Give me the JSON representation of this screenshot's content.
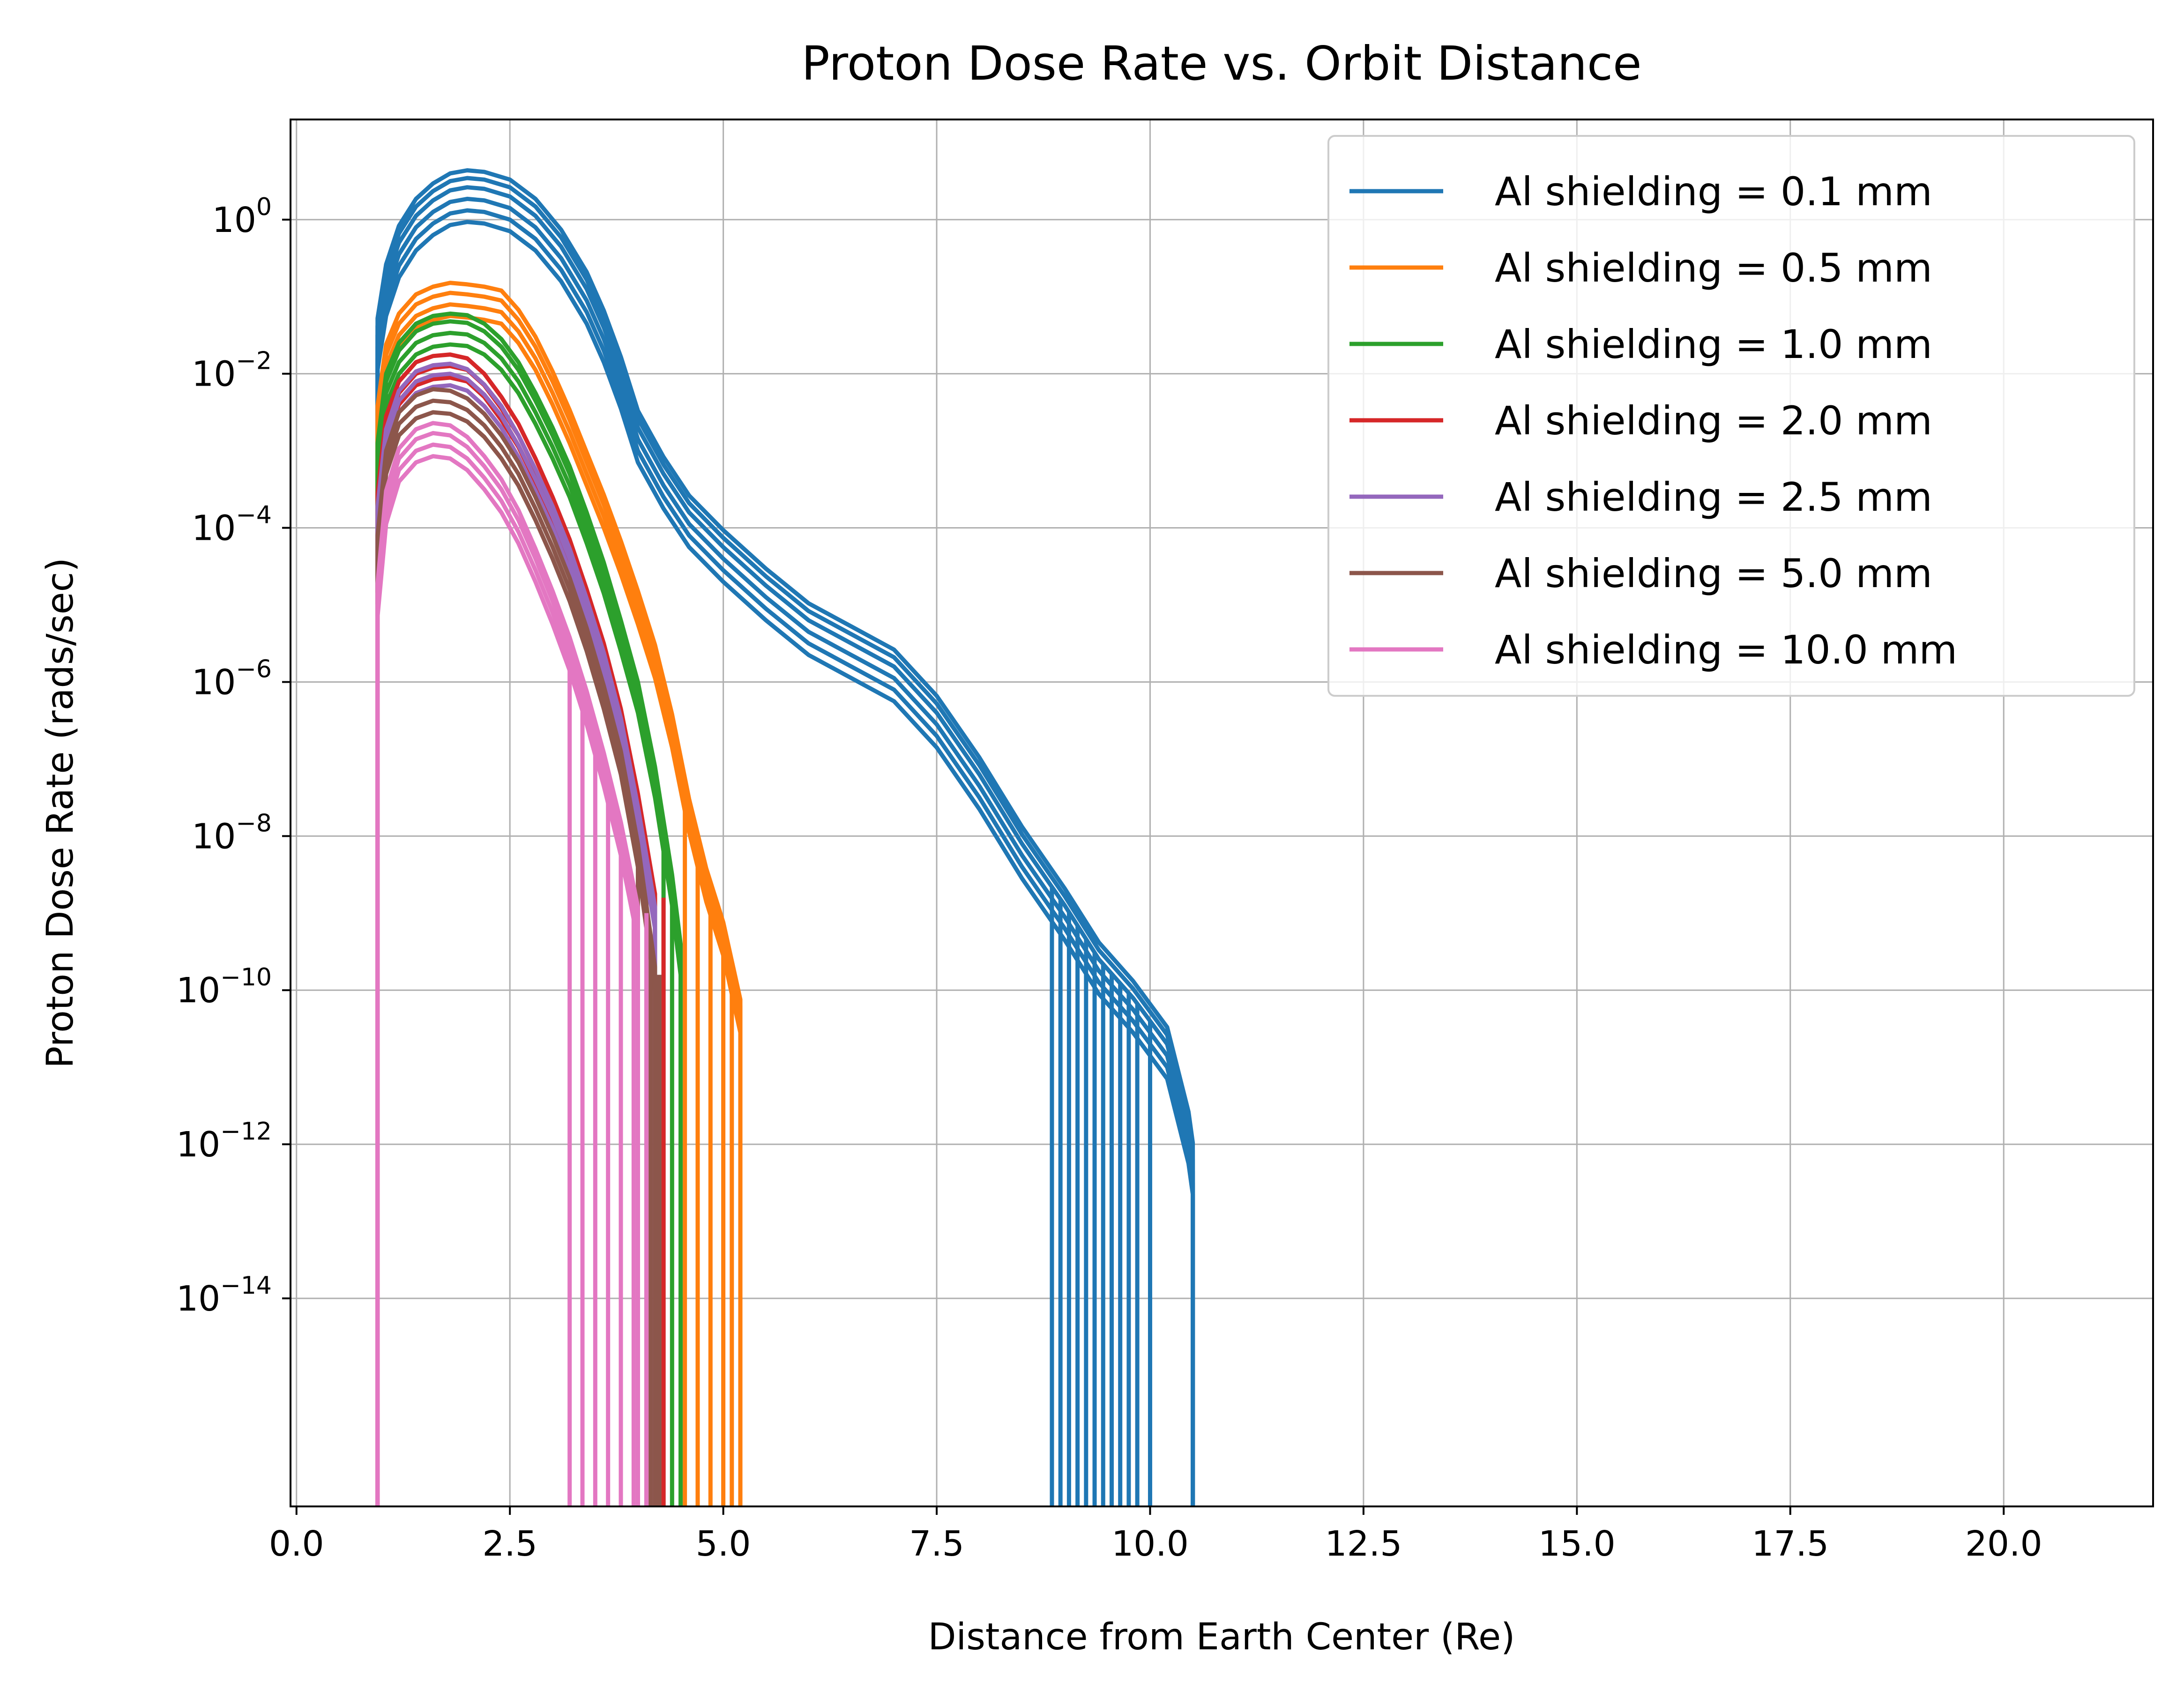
{
  "chart_data": {
    "type": "line",
    "title": "Proton Dose Rate vs. Orbit Distance",
    "xlabel": "Distance from Earth Center (Re)",
    "ylabel": "Proton Dose Rate (rads/sec)",
    "xlim": [
      -0.07,
      21.75
    ],
    "ylim_exponent": [
      -16.7,
      1.3
    ],
    "yscale": "log",
    "grid": true,
    "legend_position": "top-right",
    "x_ticks": [
      {
        "value": 0.0,
        "label": "0.0"
      },
      {
        "value": 2.5,
        "label": "2.5"
      },
      {
        "value": 5.0,
        "label": "5.0"
      },
      {
        "value": 7.5,
        "label": "7.5"
      },
      {
        "value": 10.0,
        "label": "10.0"
      },
      {
        "value": 12.5,
        "label": "12.5"
      },
      {
        "value": 15.0,
        "label": "15.0"
      },
      {
        "value": 17.5,
        "label": "17.5"
      },
      {
        "value": 20.0,
        "label": "20.0"
      }
    ],
    "y_ticks": [
      {
        "exponent": 0,
        "base": "10",
        "sup": "0"
      },
      {
        "exponent": -2,
        "base": "10",
        "sup": "−2"
      },
      {
        "exponent": -4,
        "base": "10",
        "sup": "−4"
      },
      {
        "exponent": -6,
        "base": "10",
        "sup": "−6"
      },
      {
        "exponent": -8,
        "base": "10",
        "sup": "−8"
      },
      {
        "exponent": -10,
        "base": "10",
        "sup": "−10"
      },
      {
        "exponent": -12,
        "base": "10",
        "sup": "−12"
      },
      {
        "exponent": -14,
        "base": "10",
        "sup": "−14"
      }
    ],
    "series": [
      {
        "name": "Al shielding = 0.1 mm",
        "color": "#1f77b4",
        "x": [
          0.95,
          1.05,
          1.2,
          1.4,
          1.6,
          1.8,
          2.0,
          2.2,
          2.5,
          2.8,
          3.1,
          3.4,
          3.6,
          3.8,
          4.0,
          4.3,
          4.6,
          5.0,
          5.5,
          6.0,
          6.5,
          7.0,
          7.5,
          8.0,
          8.5,
          9.0,
          9.4,
          9.8,
          10.2,
          10.45,
          10.5
        ],
        "log10_y": [
          -1.5,
          -0.8,
          -0.3,
          0.05,
          0.25,
          0.38,
          0.42,
          0.4,
          0.3,
          0.05,
          -0.35,
          -0.9,
          -1.4,
          -2.0,
          -2.7,
          -3.3,
          -3.8,
          -4.25,
          -4.75,
          -5.2,
          -5.5,
          -5.8,
          -6.4,
          -7.2,
          -8.1,
          -8.9,
          -9.6,
          -10.1,
          -10.7,
          -11.8,
          -12.2
        ],
        "band_offsets": [
          -0.45,
          -0.3,
          -0.15,
          0.0,
          0.12,
          0.22
        ],
        "cutoff_x": [
          8.85,
          8.95,
          9.05,
          9.15,
          9.25,
          9.35,
          9.45,
          9.55,
          9.65,
          9.75,
          9.85,
          10.0
        ]
      },
      {
        "name": "Al shielding = 0.5 mm",
        "color": "#ff7f0e",
        "x": [
          0.95,
          1.05,
          1.2,
          1.4,
          1.6,
          1.8,
          2.0,
          2.2,
          2.4,
          2.6,
          2.8,
          3.0,
          3.2,
          3.4,
          3.6,
          3.8,
          4.0,
          4.2,
          4.4,
          4.6,
          4.8,
          5.0,
          5.2
        ],
        "log10_y": [
          -2.5,
          -1.7,
          -1.3,
          -1.05,
          -0.95,
          -0.9,
          -0.92,
          -0.95,
          -1.0,
          -1.25,
          -1.6,
          -2.05,
          -2.55,
          -3.1,
          -3.65,
          -4.25,
          -4.9,
          -5.6,
          -6.5,
          -7.6,
          -8.5,
          -9.2,
          -10.2
        ],
        "band_offsets": [
          -0.35,
          -0.2,
          -0.05,
          0.08
        ],
        "cutoff_x": [
          4.55,
          4.7,
          4.85,
          5.0,
          5.1,
          5.2
        ]
      },
      {
        "name": "Al shielding = 1.0 mm",
        "color": "#2ca02c",
        "x": [
          0.95,
          1.05,
          1.2,
          1.4,
          1.6,
          1.8,
          2.0,
          2.2,
          2.4,
          2.6,
          2.8,
          3.0,
          3.2,
          3.4,
          3.6,
          3.8,
          4.0,
          4.2,
          4.4,
          4.5
        ],
        "log10_y": [
          -3.0,
          -2.1,
          -1.7,
          -1.45,
          -1.35,
          -1.32,
          -1.34,
          -1.45,
          -1.65,
          -1.95,
          -2.35,
          -2.8,
          -3.3,
          -3.9,
          -4.55,
          -5.3,
          -6.1,
          -7.2,
          -8.6,
          -9.5
        ],
        "band_offsets": [
          -0.3,
          -0.15,
          0.0,
          0.1
        ],
        "cutoff_x": [
          4.3,
          4.4,
          4.5
        ]
      },
      {
        "name": "Al shielding = 2.0 mm",
        "color": "#d62728",
        "x": [
          0.95,
          1.05,
          1.2,
          1.4,
          1.6,
          1.8,
          2.0,
          2.2,
          2.4,
          2.6,
          2.8,
          3.0,
          3.2,
          3.4,
          3.6,
          3.8,
          4.0,
          4.2
        ],
        "log10_y": [
          -3.6,
          -2.6,
          -2.15,
          -1.9,
          -1.82,
          -1.8,
          -1.85,
          -2.05,
          -2.35,
          -2.7,
          -3.15,
          -3.65,
          -4.2,
          -4.85,
          -5.55,
          -6.4,
          -7.5,
          -8.8
        ],
        "band_offsets": [
          -0.25,
          -0.1,
          0.05
        ],
        "cutoff_x": [
          4.1,
          4.2,
          4.3
        ]
      },
      {
        "name": "Al shielding = 2.5 mm",
        "color": "#9467bd",
        "x": [
          0.95,
          1.05,
          1.2,
          1.4,
          1.6,
          1.8,
          2.0,
          2.2,
          2.4,
          2.6,
          2.8,
          3.0,
          3.2,
          3.4,
          3.6,
          3.8,
          4.0,
          4.2
        ],
        "log10_y": [
          -3.8,
          -2.8,
          -2.3,
          -2.05,
          -1.97,
          -1.95,
          -2.02,
          -2.22,
          -2.5,
          -2.88,
          -3.32,
          -3.8,
          -4.35,
          -5.0,
          -5.7,
          -6.55,
          -7.7,
          -9.0
        ],
        "band_offsets": [
          -0.2,
          -0.05,
          0.08
        ],
        "cutoff_x": [
          4.1,
          4.2
        ]
      },
      {
        "name": "Al shielding = 5.0 mm",
        "color": "#8c564b",
        "x": [
          0.95,
          1.05,
          1.2,
          1.4,
          1.6,
          1.8,
          2.0,
          2.2,
          2.4,
          2.6,
          2.8,
          3.0,
          3.2,
          3.4,
          3.6,
          3.8,
          4.0,
          4.2
        ],
        "log10_y": [
          -4.2,
          -3.1,
          -2.6,
          -2.38,
          -2.3,
          -2.32,
          -2.42,
          -2.62,
          -2.9,
          -3.25,
          -3.7,
          -4.2,
          -4.75,
          -5.4,
          -6.15,
          -7.0,
          -8.2,
          -9.8
        ],
        "band_offsets": [
          -0.2,
          -0.05,
          0.1
        ],
        "cutoff_x": [
          4.0,
          4.15,
          4.25
        ]
      },
      {
        "name": "Al shielding = 10.0 mm",
        "color": "#e377c2",
        "x": [
          0.95,
          1.05,
          1.2,
          1.4,
          1.6,
          1.8,
          2.0,
          2.2,
          2.4,
          2.6,
          2.8,
          3.0,
          3.2,
          3.4,
          3.6,
          3.8,
          4.0
        ],
        "log10_y": [
          -4.8,
          -3.6,
          -3.05,
          -2.8,
          -2.72,
          -2.75,
          -2.9,
          -3.15,
          -3.45,
          -3.85,
          -4.35,
          -4.9,
          -5.5,
          -6.2,
          -7.0,
          -7.9,
          -9.0
        ],
        "band_offsets": [
          -0.35,
          -0.2,
          -0.05,
          0.08
        ],
        "cutoff_x": [
          3.2,
          3.35,
          3.5,
          3.65,
          3.8,
          3.95,
          4.1
        ]
      }
    ]
  }
}
